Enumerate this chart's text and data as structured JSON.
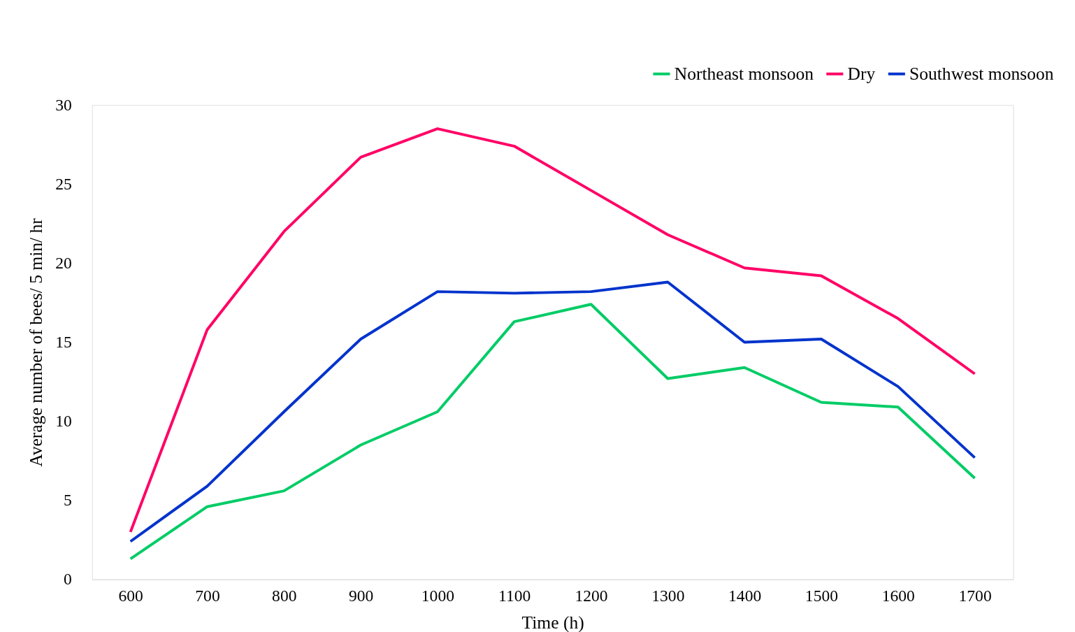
{
  "chart_data": {
    "type": "line",
    "xlabel": "Time (h)",
    "ylabel": "Average number of bees/ 5 min/ hr",
    "categories": [
      "600",
      "700",
      "800",
      "900",
      "1000",
      "1100",
      "1200",
      "1300",
      "1400",
      "1500",
      "1600",
      "1700"
    ],
    "series": [
      {
        "name": "Northeast monsoon",
        "color": "#00cc66",
        "values": [
          1.3,
          4.6,
          5.6,
          8.5,
          10.6,
          16.3,
          17.4,
          12.7,
          13.4,
          11.2,
          10.9,
          6.4
        ]
      },
      {
        "name": "Dry",
        "color": "#ff0066",
        "values": [
          3.0,
          15.8,
          22.0,
          26.7,
          28.5,
          27.4,
          24.6,
          21.8,
          19.7,
          19.2,
          16.5,
          13.0
        ]
      },
      {
        "name": "Southwest monsoon",
        "color": "#0033cc",
        "values": [
          2.4,
          5.9,
          10.6,
          15.2,
          18.2,
          18.1,
          18.2,
          18.8,
          15.0,
          15.2,
          12.2,
          7.7
        ]
      }
    ],
    "ylim": [
      0,
      30
    ],
    "yticks": [
      0,
      5,
      10,
      15,
      20,
      25,
      30
    ],
    "grid": false,
    "legend": "top right",
    "marker": "none",
    "line_style": "solid"
  }
}
